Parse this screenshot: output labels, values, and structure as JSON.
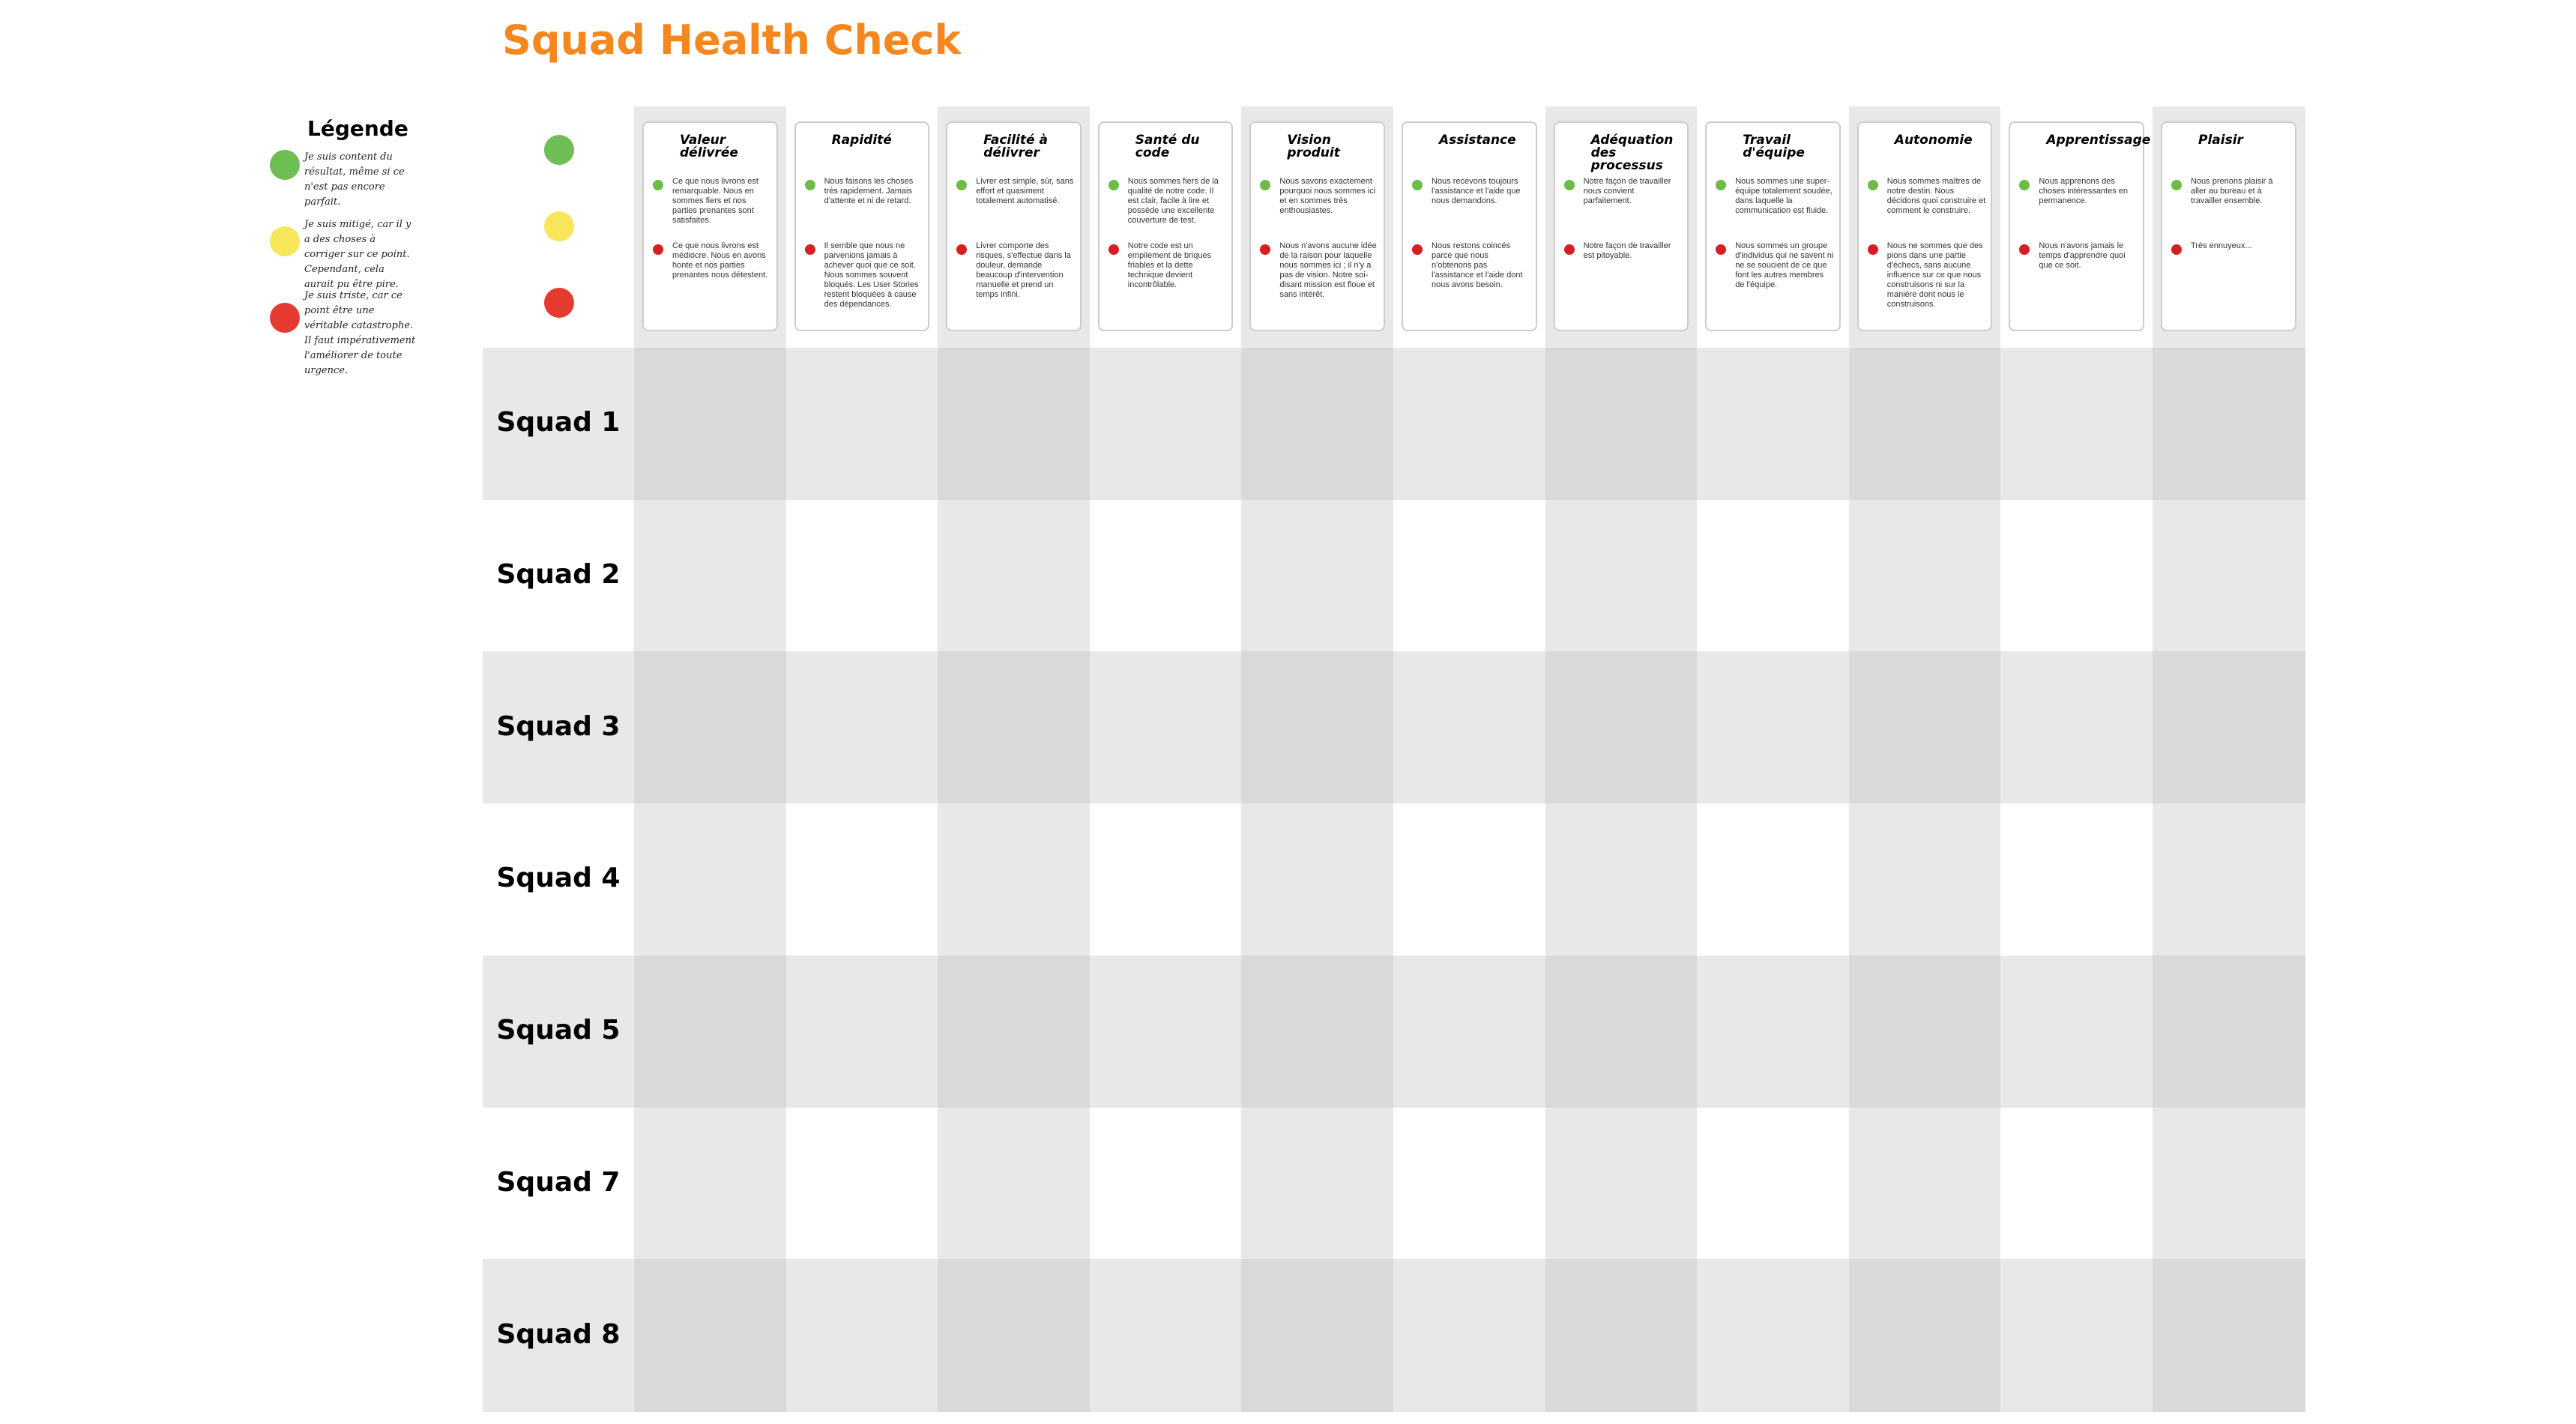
{
  "title": "Squad Health Check",
  "legend": {
    "title": "Légende",
    "items": [
      "Je suis content du résultat, même si ce n'est pas encore parfait.",
      "Je suis mitigé, car il y a des choses à corriger sur ce point. Cependant, cela aurait pu être pire.",
      "Je suis triste, car ce point être une véritable catastrophe. Il faut impérativement l'améliorer de toute urgence."
    ]
  },
  "columns": [
    {
      "title": "Valeur délivrée",
      "good": "Ce que nous livrons est remarquable. Nous en sommes fiers et nos parties prenantes sont satisfaites.",
      "bad": "Ce que nous livrons est médiocre. Nous en avons honte et nos parties prenantes nous détestent."
    },
    {
      "title": "Rapidité",
      "good": "Nous faisons les choses très rapidement. Jamais d'attente et ni de retard.",
      "bad": "Il semble que nous ne parvenions jamais à achever quoi que ce soit. Nous sommes souvent bloqués. Les User Stories restent bloquées à cause des dépendances."
    },
    {
      "title": "Facilité à délivrer",
      "good": "Livrer est simple, sûr, sans effort et quasiment totalement automatisé.",
      "bad": "Livrer comporte des risques, s'effectue dans la douleur, demande beaucoup d'intervention manuelle et prend un temps infini."
    },
    {
      "title": "Santé du code",
      "good": "Nous sommes fiers de la qualité de notre code. Il est clair, facile à lire et possède une excellente couverture de test.",
      "bad": "Notre code est un empilement de briques friables et la dette technique devient incontrôlable."
    },
    {
      "title": "Vision produit",
      "good": "Nous savons exactement pourquoi nous sommes ici et en sommes très enthousiastes.",
      "bad": "Nous n'avons aucune idée de la raison pour laquelle nous sommes ici ; il n'y a pas de vision. Notre soi-disant mission est floue et sans intérêt."
    },
    {
      "title": "Assistance",
      "good": "Nous recevons toujours l'assistance et l'aide que nous demandons.",
      "bad": "Nous restons coincés parce que nous n'obtenons pas l'assistance et l'aide dont nous avons besoin."
    },
    {
      "title": "Adéquation des processus",
      "good": "Notre façon de travailler nous convient parfaitement.",
      "bad": "Notre façon de travailler est pitoyable."
    },
    {
      "title": "Travail d'équipe",
      "good": "Nous sommes une super-équipe totalement soudée, dans laquelle la communication est fluide.",
      "bad": "Nous sommes un groupe d'individus qui ne savent ni ne se soucient de ce que font les autres membres de l'équipe."
    },
    {
      "title": "Autonomie",
      "good": "Nous sommes maîtres de notre destin. Nous décidons quoi construire et comment le construire.",
      "bad": "Nous ne sommes que des pions dans une partie d'échecs, sans aucune influence sur ce que nous construisons ni sur la manière dont nous le construisons."
    },
    {
      "title": "Apprentissage",
      "good": "Nous apprenons des choses intéressantes en permanence.",
      "bad": "Nous n'avons jamais le temps d'apprendre quoi que ce soit."
    },
    {
      "title": "Plaisir",
      "good": "Nous prenons plaisir à aller au bureau et à travailler ensemble.",
      "bad": "Très ennuyeux..."
    }
  ],
  "rows": [
    "Squad 1",
    "Squad 2",
    "Squad 3",
    "Squad 4",
    "Squad 5",
    "Squad 7",
    "Squad 8"
  ]
}
